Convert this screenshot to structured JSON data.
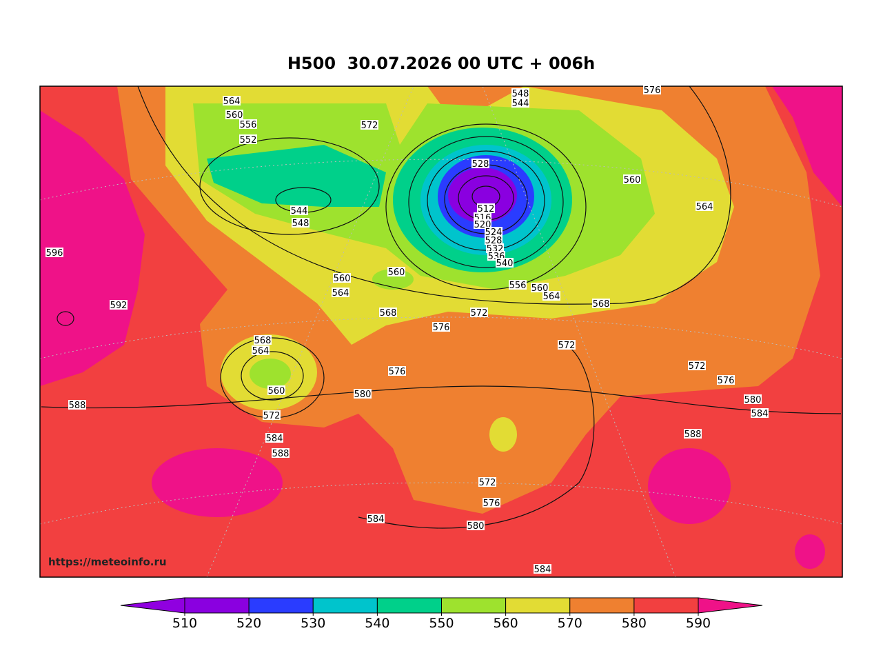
{
  "title": "H500  30.07.2026 00 UTC + 006h",
  "watermark": "https://meteoinfo.ru",
  "colorbar": {
    "levels": [
      510,
      520,
      530,
      540,
      550,
      560,
      570,
      580,
      590
    ],
    "colors": [
      "#9000e0",
      "#8a00e0",
      "#2a3cff",
      "#00c4cc",
      "#00d08a",
      "#9ee22e",
      "#e2dc34",
      "#ef8030",
      "#f24040",
      "#ef1288"
    ]
  },
  "contour_labels": [
    564,
    560,
    556,
    552,
    572,
    548,
    544,
    528,
    512,
    516,
    520,
    524,
    528,
    532,
    536,
    540,
    556,
    560,
    564,
    568,
    560,
    564,
    544,
    548,
    560,
    564,
    560,
    568,
    572,
    576,
    572,
    568,
    564,
    560,
    576,
    580,
    572,
    584,
    588,
    596,
    592,
    588,
    572,
    576,
    580,
    584,
    588,
    572,
    576,
    580,
    584,
    584,
    576
  ]
}
